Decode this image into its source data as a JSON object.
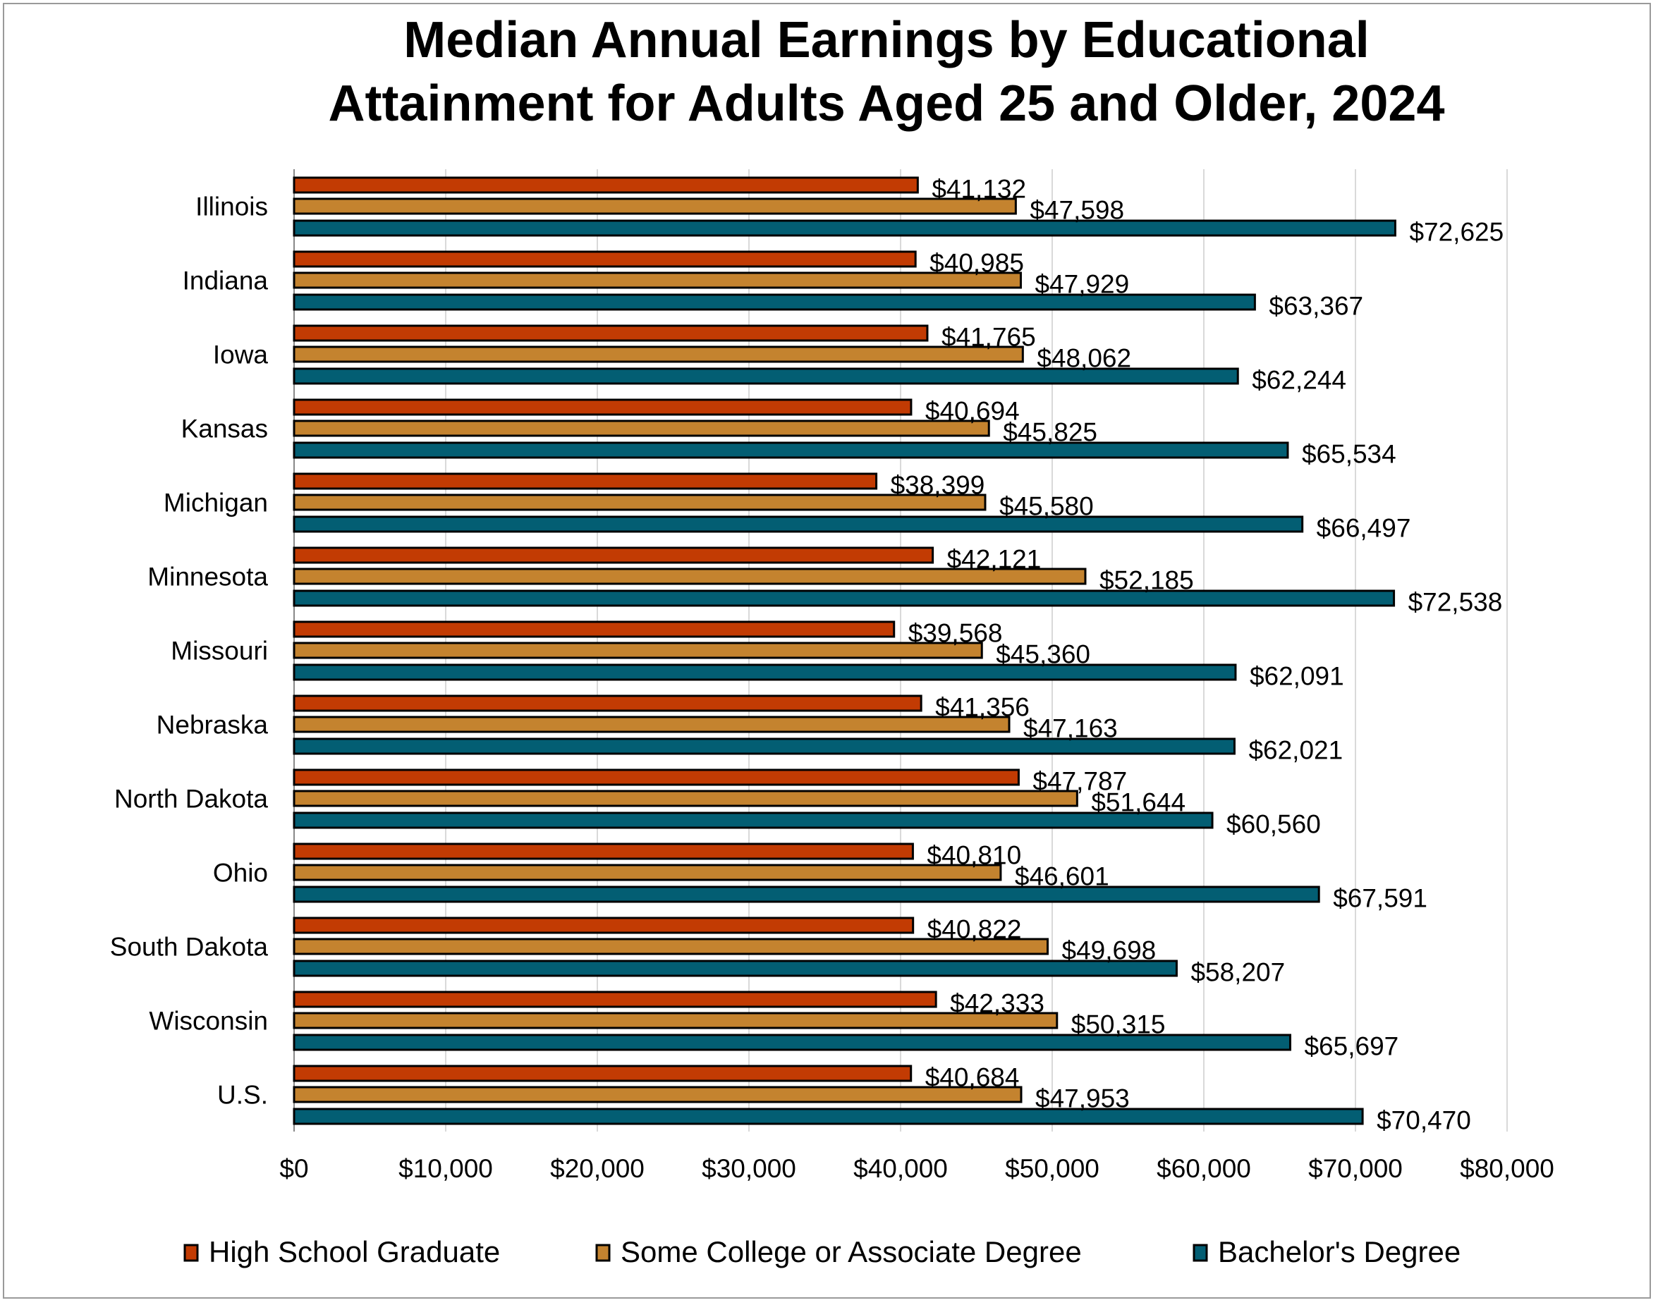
{
  "chart_data": {
    "type": "bar",
    "orientation": "horizontal",
    "title": [
      "Median Annual Earnings by Educational",
      "Attainment for Adults Aged 25 and Older, 2024"
    ],
    "xlabel": "",
    "ylabel": "",
    "xlim": [
      0,
      80000
    ],
    "x_ticks": [
      0,
      10000,
      20000,
      30000,
      40000,
      50000,
      60000,
      70000,
      80000
    ],
    "x_tick_labels": [
      "$0",
      "$10,000",
      "$20,000",
      "$30,000",
      "$40,000",
      "$50,000",
      "$60,000",
      "$70,000",
      "$80,000"
    ],
    "grid": true,
    "legend_position": "bottom",
    "categories": [
      "Illinois",
      "Indiana",
      "Iowa",
      "Kansas",
      "Michigan",
      "Minnesota",
      "Missouri",
      "Nebraska",
      "North Dakota",
      "Ohio",
      "South Dakota",
      "Wisconsin",
      "U.S."
    ],
    "series": [
      {
        "name": "High School Graduate",
        "color": "#C23B03",
        "values": [
          41132,
          40985,
          41765,
          40694,
          38399,
          42121,
          39568,
          41356,
          47787,
          40810,
          40822,
          42333,
          40684
        ]
      },
      {
        "name": "Some College or Associate Degree",
        "color": "#C4832F",
        "values": [
          47598,
          47929,
          48062,
          45825,
          45580,
          52185,
          45360,
          47163,
          51644,
          46601,
          49698,
          50315,
          47953
        ]
      },
      {
        "name": "Bachelor's Degree",
        "color": "#035E73",
        "values": [
          72625,
          63367,
          62244,
          65534,
          66497,
          72538,
          62091,
          62021,
          60560,
          67591,
          58207,
          65697,
          70470
        ]
      }
    ]
  }
}
